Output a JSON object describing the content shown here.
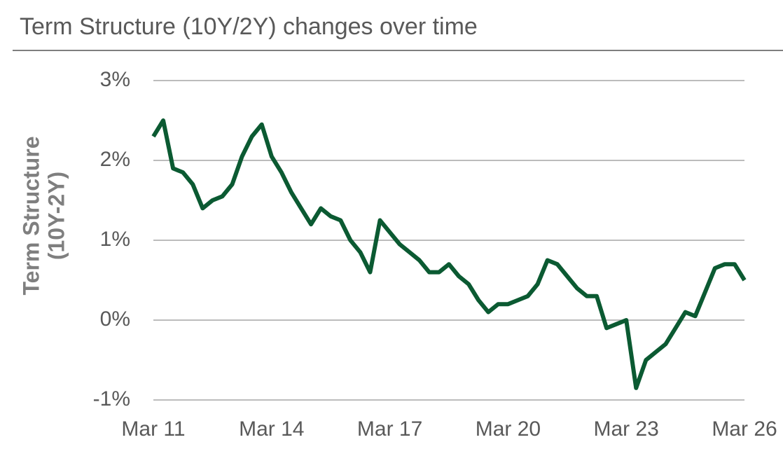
{
  "chart_data": {
    "type": "line",
    "title": "Term Structure (10Y/2Y) changes over time",
    "y_label": [
      "Term Structure",
      "(10Y-2Y)"
    ],
    "x": [
      "2011-03",
      "2011-06",
      "2011-09",
      "2011-12",
      "2012-03",
      "2012-06",
      "2012-09",
      "2012-12",
      "2013-03",
      "2013-06",
      "2013-09",
      "2013-12",
      "2014-03",
      "2014-06",
      "2014-09",
      "2014-12",
      "2015-03",
      "2015-06",
      "2015-09",
      "2015-12",
      "2016-03",
      "2016-06",
      "2016-09",
      "2016-12",
      "2017-03",
      "2017-06",
      "2017-09",
      "2017-12",
      "2018-03",
      "2018-06",
      "2018-09",
      "2018-12",
      "2019-03",
      "2019-06",
      "2019-09",
      "2019-12",
      "2020-03",
      "2020-06",
      "2020-09",
      "2020-12",
      "2021-03",
      "2021-06",
      "2021-09",
      "2021-12",
      "2022-03",
      "2022-06",
      "2022-09",
      "2022-12",
      "2023-03",
      "2023-06",
      "2023-09",
      "2023-12",
      "2024-03",
      "2024-06",
      "2024-09",
      "2024-12",
      "2025-03",
      "2025-06",
      "2025-09",
      "2025-12",
      "2026-03"
    ],
    "series": [
      {
        "name": "Term Structure (10Y-2Y)",
        "color": "#0b5a32",
        "values": [
          2.3,
          2.5,
          1.9,
          1.85,
          1.7,
          1.4,
          1.5,
          1.55,
          1.7,
          2.05,
          2.3,
          2.45,
          2.05,
          1.85,
          1.6,
          1.4,
          1.2,
          1.4,
          1.3,
          1.25,
          1.0,
          0.85,
          0.6,
          1.25,
          1.1,
          0.95,
          0.85,
          0.75,
          0.6,
          0.6,
          0.7,
          0.55,
          0.45,
          0.25,
          0.1,
          0.2,
          0.2,
          0.25,
          0.3,
          0.45,
          0.75,
          0.7,
          0.55,
          0.4,
          0.3,
          0.3,
          -0.1,
          -0.05,
          0.0,
          -0.85,
          -0.5,
          -0.4,
          -0.3,
          -0.1,
          0.1,
          0.05,
          0.35,
          0.65,
          0.7,
          0.7,
          0.5
        ]
      }
    ],
    "xlim": [
      "2011-03",
      "2026-03"
    ],
    "xticks": [
      {
        "value": "2011-03",
        "label": "Mar 11"
      },
      {
        "value": "2014-03",
        "label": "Mar 14"
      },
      {
        "value": "2017-03",
        "label": "Mar 17"
      },
      {
        "value": "2020-03",
        "label": "Mar 20"
      },
      {
        "value": "2023-03",
        "label": "Mar 23"
      },
      {
        "value": "2026-03",
        "label": "Mar 26"
      }
    ],
    "ylim": [
      -1,
      3
    ],
    "yticks": [
      {
        "value": -1,
        "label": "-1%"
      },
      {
        "value": 0,
        "label": "0%"
      },
      {
        "value": 1,
        "label": "1%"
      },
      {
        "value": 2,
        "label": "2%"
      },
      {
        "value": 3,
        "label": "3%"
      }
    ],
    "grid": true
  }
}
